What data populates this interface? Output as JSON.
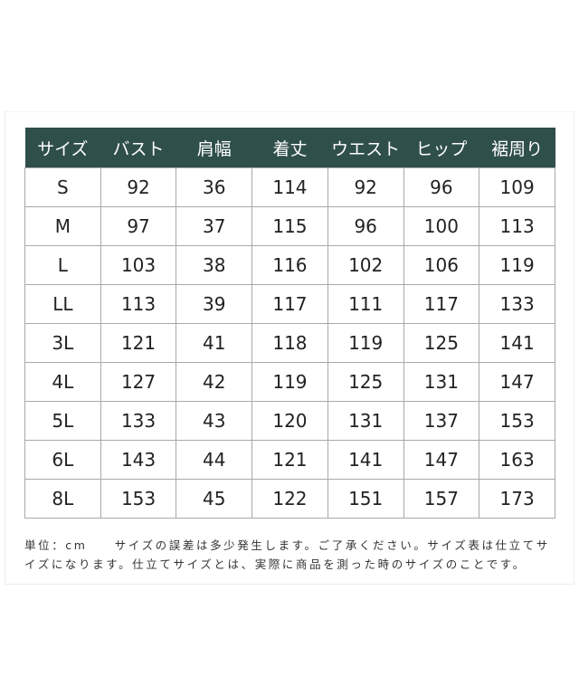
{
  "table": {
    "headers": [
      "サイズ",
      "バスト",
      "肩幅",
      "着丈",
      "ウエスト",
      "ヒップ",
      "裾周り"
    ],
    "rows": [
      [
        "S",
        "92",
        "36",
        "114",
        "92",
        "96",
        "109"
      ],
      [
        "M",
        "97",
        "37",
        "115",
        "96",
        "100",
        "113"
      ],
      [
        "L",
        "103",
        "38",
        "116",
        "102",
        "106",
        "119"
      ],
      [
        "LL",
        "113",
        "39",
        "117",
        "111",
        "117",
        "133"
      ],
      [
        "3L",
        "121",
        "41",
        "118",
        "119",
        "125",
        "141"
      ],
      [
        "4L",
        "127",
        "42",
        "119",
        "125",
        "131",
        "147"
      ],
      [
        "5L",
        "133",
        "43",
        "120",
        "131",
        "137",
        "153"
      ],
      [
        "6L",
        "143",
        "44",
        "121",
        "141",
        "147",
        "163"
      ],
      [
        "8L",
        "153",
        "45",
        "122",
        "151",
        "157",
        "173"
      ]
    ]
  },
  "header_color": "#2f4f4b",
  "note": "単位：cm　　サイズの誤差は多少発生します。ご了承ください。サイズ表は仕立てサイズになります。仕立てサイズとは、実際に商品を測った時のサイズのことです。"
}
